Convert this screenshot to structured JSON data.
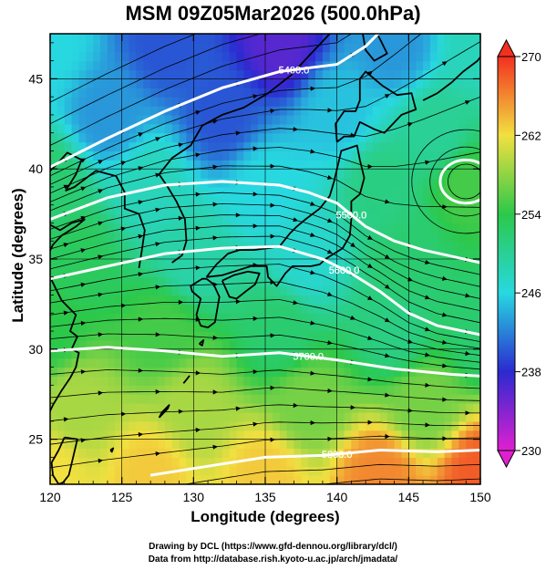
{
  "title": "MSM 09Z05Mar2026 (500.0hPa)",
  "credits": {
    "line1": "Drawing by DCL (https://www.gfd-dennou.org/library/dcl/)",
    "line2": "Data from http://database.rish.kyoto-u.ac.jp/arch/jmadata/"
  },
  "chart_data": {
    "type": "heatmap",
    "xlabel": "Longitude (degrees)",
    "ylabel": "Latitude  (degrees)",
    "xlim": [
      120,
      150
    ],
    "ylim": [
      22.5,
      47.5
    ],
    "x_ticks": [
      "120",
      "125",
      "130",
      "135",
      "140",
      "145",
      "150"
    ],
    "y_ticks": [
      "25",
      "30",
      "35",
      "40",
      "45"
    ],
    "colorbar": {
      "range": [
        230,
        270
      ],
      "ticks": [
        "230",
        "238",
        "246",
        "254",
        "262",
        "270"
      ],
      "colors": [
        "#e020d0",
        "#2a2ad0",
        "#28d8e0",
        "#2cc84a",
        "#f2e040",
        "#f23020"
      ]
    },
    "contours": [
      {
        "value": "5400.0",
        "points": [
          [
            120,
            40.1
          ],
          [
            124,
            41.7
          ],
          [
            128,
            43.2
          ],
          [
            132,
            44.5
          ],
          [
            136,
            45.4
          ],
          [
            140,
            45.8
          ],
          [
            142,
            46.8
          ],
          [
            143.5,
            48
          ]
        ]
      },
      {
        "value": "5500.0",
        "points": [
          [
            120,
            37.2
          ],
          [
            124,
            38.4
          ],
          [
            128,
            39.1
          ],
          [
            132,
            39.3
          ],
          [
            136,
            39.1
          ],
          [
            138,
            38.7
          ],
          [
            140,
            38.1
          ],
          [
            142,
            36.8
          ],
          [
            144,
            36.0
          ],
          [
            146,
            35.5
          ],
          [
            150,
            34.8
          ]
        ]
      },
      {
        "value": "5600.0",
        "points": [
          [
            120,
            33.9
          ],
          [
            124,
            34.6
          ],
          [
            128,
            35.3
          ],
          [
            132,
            35.6
          ],
          [
            136,
            35.7
          ],
          [
            139,
            35.0
          ],
          [
            141,
            34.2
          ],
          [
            143,
            33.2
          ],
          [
            145,
            32.0
          ],
          [
            147,
            31.3
          ],
          [
            150,
            30.8
          ]
        ]
      },
      {
        "value": "5700.0",
        "points": [
          [
            120,
            29.9
          ],
          [
            124,
            30.1
          ],
          [
            128,
            29.9
          ],
          [
            132,
            29.6
          ],
          [
            136,
            29.8
          ],
          [
            140,
            29.4
          ],
          [
            144,
            28.9
          ],
          [
            148,
            28.6
          ],
          [
            150,
            28.5
          ]
        ]
      },
      {
        "value": "5800.0",
        "points": [
          [
            127,
            23.0
          ],
          [
            131,
            23.5
          ],
          [
            135,
            24.0
          ],
          [
            139,
            24.1
          ],
          [
            143,
            24.4
          ],
          [
            147,
            24.3
          ],
          [
            150,
            24.4
          ]
        ]
      }
    ],
    "closed_contour": {
      "center": [
        149.0,
        39.3
      ],
      "rx": 1.8,
      "ry": 1.2
    },
    "temperature_field": [
      {
        "lon": 120,
        "lat": 47,
        "t": 246
      },
      {
        "lon": 128,
        "lat": 47,
        "t": 240
      },
      {
        "lon": 136,
        "lat": 47,
        "t": 236
      },
      {
        "lon": 144,
        "lat": 47,
        "t": 243
      },
      {
        "lon": 150,
        "lat": 47,
        "t": 248
      },
      {
        "lon": 124,
        "lat": 43,
        "t": 243
      },
      {
        "lon": 132,
        "lat": 43,
        "t": 240
      },
      {
        "lon": 140,
        "lat": 43,
        "t": 245
      },
      {
        "lon": 147,
        "lat": 42,
        "t": 250
      },
      {
        "lon": 120,
        "lat": 39,
        "t": 252
      },
      {
        "lon": 127,
        "lat": 39,
        "t": 248
      },
      {
        "lon": 135,
        "lat": 39,
        "t": 246
      },
      {
        "lon": 143,
        "lat": 39,
        "t": 251
      },
      {
        "lon": 149,
        "lat": 39,
        "t": 255
      },
      {
        "lon": 122,
        "lat": 35,
        "t": 253
      },
      {
        "lon": 130,
        "lat": 35,
        "t": 249
      },
      {
        "lon": 138,
        "lat": 35,
        "t": 247
      },
      {
        "lon": 145,
        "lat": 35,
        "t": 252
      },
      {
        "lon": 120,
        "lat": 31,
        "t": 254
      },
      {
        "lon": 128,
        "lat": 31,
        "t": 255
      },
      {
        "lon": 136,
        "lat": 31,
        "t": 252
      },
      {
        "lon": 144,
        "lat": 31,
        "t": 251
      },
      {
        "lon": 150,
        "lat": 31,
        "t": 252
      },
      {
        "lon": 122,
        "lat": 27,
        "t": 259
      },
      {
        "lon": 130,
        "lat": 27,
        "t": 259
      },
      {
        "lon": 138,
        "lat": 27,
        "t": 257
      },
      {
        "lon": 146,
        "lat": 27,
        "t": 257
      },
      {
        "lon": 120,
        "lat": 23,
        "t": 262
      },
      {
        "lon": 127,
        "lat": 23,
        "t": 263
      },
      {
        "lon": 135,
        "lat": 23,
        "t": 263
      },
      {
        "lon": 143,
        "lat": 23,
        "t": 266
      },
      {
        "lon": 150,
        "lat": 23,
        "t": 268
      }
    ],
    "coastlines": [
      [
        [
          128.5,
          34.8
        ],
        [
          129.2,
          35.2
        ],
        [
          129.5,
          36.0
        ],
        [
          129.4,
          37.2
        ],
        [
          128.8,
          38.2
        ],
        [
          128.2,
          39.0
        ],
        [
          127.6,
          39.7
        ],
        [
          128.5,
          40.6
        ],
        [
          129.8,
          41.3
        ],
        [
          130.6,
          42.4
        ],
        [
          132.0,
          43.0
        ],
        [
          133.5,
          43.4
        ],
        [
          135.2,
          44.2
        ],
        [
          136.8,
          45.2
        ],
        [
          138.2,
          46.4
        ],
        [
          139.5,
          47.5
        ]
      ],
      [
        [
          126.2,
          34.5
        ],
        [
          126.4,
          35.5
        ],
        [
          126.6,
          36.6
        ],
        [
          126.2,
          37.5
        ],
        [
          125.2,
          37.8
        ],
        [
          125.2,
          38.7
        ],
        [
          124.6,
          39.6
        ],
        [
          123.2,
          39.9
        ],
        [
          121.7,
          39.0
        ],
        [
          121.1,
          38.8
        ],
        [
          121.8,
          39.7
        ],
        [
          122.2,
          40.5
        ],
        [
          121.2,
          40.9
        ],
        [
          120.4,
          40.2
        ],
        [
          120.0,
          39.9
        ]
      ],
      [
        [
          120.0,
          36.9
        ],
        [
          120.7,
          36.6
        ],
        [
          121.5,
          37.0
        ],
        [
          122.4,
          37.2
        ],
        [
          121.8,
          36.8
        ],
        [
          120.8,
          36.3
        ],
        [
          120.2,
          35.8
        ],
        [
          119.9,
          35.3
        ]
      ],
      [
        [
          120.0,
          34.0
        ],
        [
          120.8,
          32.7
        ],
        [
          121.8,
          31.9
        ],
        [
          121.4,
          31.0
        ],
        [
          121.9,
          30.7
        ],
        [
          121.5,
          30.0
        ],
        [
          122.0,
          29.8
        ],
        [
          121.8,
          29.0
        ],
        [
          121.4,
          28.4
        ],
        [
          120.8,
          27.7
        ],
        [
          120.2,
          26.9
        ],
        [
          119.9,
          26.4
        ]
      ],
      [
        [
          130.9,
          33.9
        ],
        [
          131.4,
          33.6
        ],
        [
          131.8,
          32.9
        ],
        [
          131.5,
          31.5
        ],
        [
          131.0,
          31.2
        ],
        [
          130.5,
          31.3
        ],
        [
          130.2,
          31.9
        ],
        [
          130.5,
          32.8
        ],
        [
          129.9,
          33.2
        ],
        [
          129.8,
          33.5
        ],
        [
          130.6,
          33.9
        ],
        [
          130.9,
          33.9
        ]
      ],
      [
        [
          130.9,
          34.0
        ],
        [
          132.0,
          34.1
        ],
        [
          132.8,
          34.3
        ],
        [
          134.0,
          34.6
        ],
        [
          135.1,
          34.6
        ],
        [
          135.2,
          34.0
        ],
        [
          135.8,
          33.5
        ],
        [
          136.4,
          34.2
        ],
        [
          136.9,
          34.6
        ],
        [
          137.2,
          34.6
        ],
        [
          138.2,
          34.6
        ],
        [
          138.8,
          34.7
        ],
        [
          139.2,
          35.0
        ],
        [
          139.8,
          35.3
        ],
        [
          140.4,
          35.6
        ],
        [
          140.9,
          36.3
        ],
        [
          141.0,
          37.2
        ],
        [
          141.0,
          38.2
        ],
        [
          141.6,
          38.6
        ],
        [
          141.9,
          39.5
        ],
        [
          141.6,
          40.5
        ],
        [
          141.4,
          41.3
        ],
        [
          140.3,
          41.0
        ],
        [
          140.0,
          40.0
        ],
        [
          139.8,
          39.3
        ],
        [
          139.5,
          38.5
        ],
        [
          138.8,
          37.8
        ],
        [
          137.8,
          37.2
        ],
        [
          137.2,
          36.8
        ],
        [
          136.7,
          36.4
        ],
        [
          136.0,
          35.7
        ],
        [
          135.2,
          35.6
        ],
        [
          134.2,
          35.5
        ],
        [
          133.2,
          35.5
        ],
        [
          132.4,
          35.3
        ],
        [
          131.6,
          34.7
        ],
        [
          130.9,
          34.0
        ]
      ],
      [
        [
          132.0,
          33.8
        ],
        [
          132.8,
          34.1
        ],
        [
          133.8,
          34.3
        ],
        [
          134.6,
          34.2
        ],
        [
          134.3,
          33.6
        ],
        [
          133.8,
          33.3
        ],
        [
          133.0,
          32.8
        ],
        [
          132.5,
          32.9
        ],
        [
          132.0,
          33.8
        ]
      ],
      [
        [
          140.0,
          41.5
        ],
        [
          140.5,
          41.8
        ],
        [
          141.2,
          41.8
        ],
        [
          141.6,
          42.6
        ],
        [
          142.6,
          42.2
        ],
        [
          143.3,
          42.0
        ],
        [
          144.5,
          43.0
        ],
        [
          145.5,
          43.3
        ],
        [
          145.2,
          44.2
        ],
        [
          144.2,
          44.1
        ],
        [
          143.2,
          44.6
        ],
        [
          142.0,
          45.4
        ],
        [
          141.6,
          45.0
        ],
        [
          141.6,
          43.8
        ],
        [
          141.3,
          43.2
        ],
        [
          140.5,
          43.2
        ],
        [
          139.9,
          42.5
        ],
        [
          140.0,
          41.5
        ]
      ],
      [
        [
          141.8,
          47.5
        ],
        [
          142.0,
          46.6
        ],
        [
          142.6,
          46.0
        ],
        [
          143.5,
          46.4
        ],
        [
          143.0,
          47.2
        ],
        [
          142.8,
          47.5
        ]
      ],
      [
        [
          146.0,
          43.8
        ],
        [
          147.0,
          44.2
        ],
        [
          148.0,
          44.8
        ],
        [
          148.8,
          45.4
        ],
        [
          149.8,
          46.0
        ],
        [
          150.0,
          46.2
        ]
      ],
      [
        [
          121.0,
          25.1
        ],
        [
          121.9,
          25.0
        ],
        [
          121.6,
          24.0
        ],
        [
          121.3,
          23.0
        ],
        [
          120.9,
          22.6
        ],
        [
          120.6,
          22.5
        ],
        [
          120.2,
          23.0
        ],
        [
          120.1,
          23.7
        ],
        [
          120.6,
          24.4
        ],
        [
          121.0,
          25.1
        ]
      ],
      [
        [
          127.6,
          26.2
        ],
        [
          128.2,
          26.7
        ],
        [
          128.3,
          26.9
        ],
        [
          127.8,
          26.5
        ],
        [
          127.6,
          26.2
        ]
      ],
      [
        [
          129.3,
          28.1
        ],
        [
          129.7,
          28.5
        ],
        [
          129.5,
          28.3
        ],
        [
          129.3,
          28.1
        ]
      ],
      [
        [
          130.4,
          30.3
        ],
        [
          130.7,
          30.5
        ],
        [
          130.6,
          30.2
        ],
        [
          130.4,
          30.3
        ]
      ],
      [
        [
          124.2,
          24.4
        ],
        [
          124.4,
          24.5
        ],
        [
          124.3,
          24.3
        ],
        [
          124.2,
          24.4
        ]
      ]
    ]
  }
}
